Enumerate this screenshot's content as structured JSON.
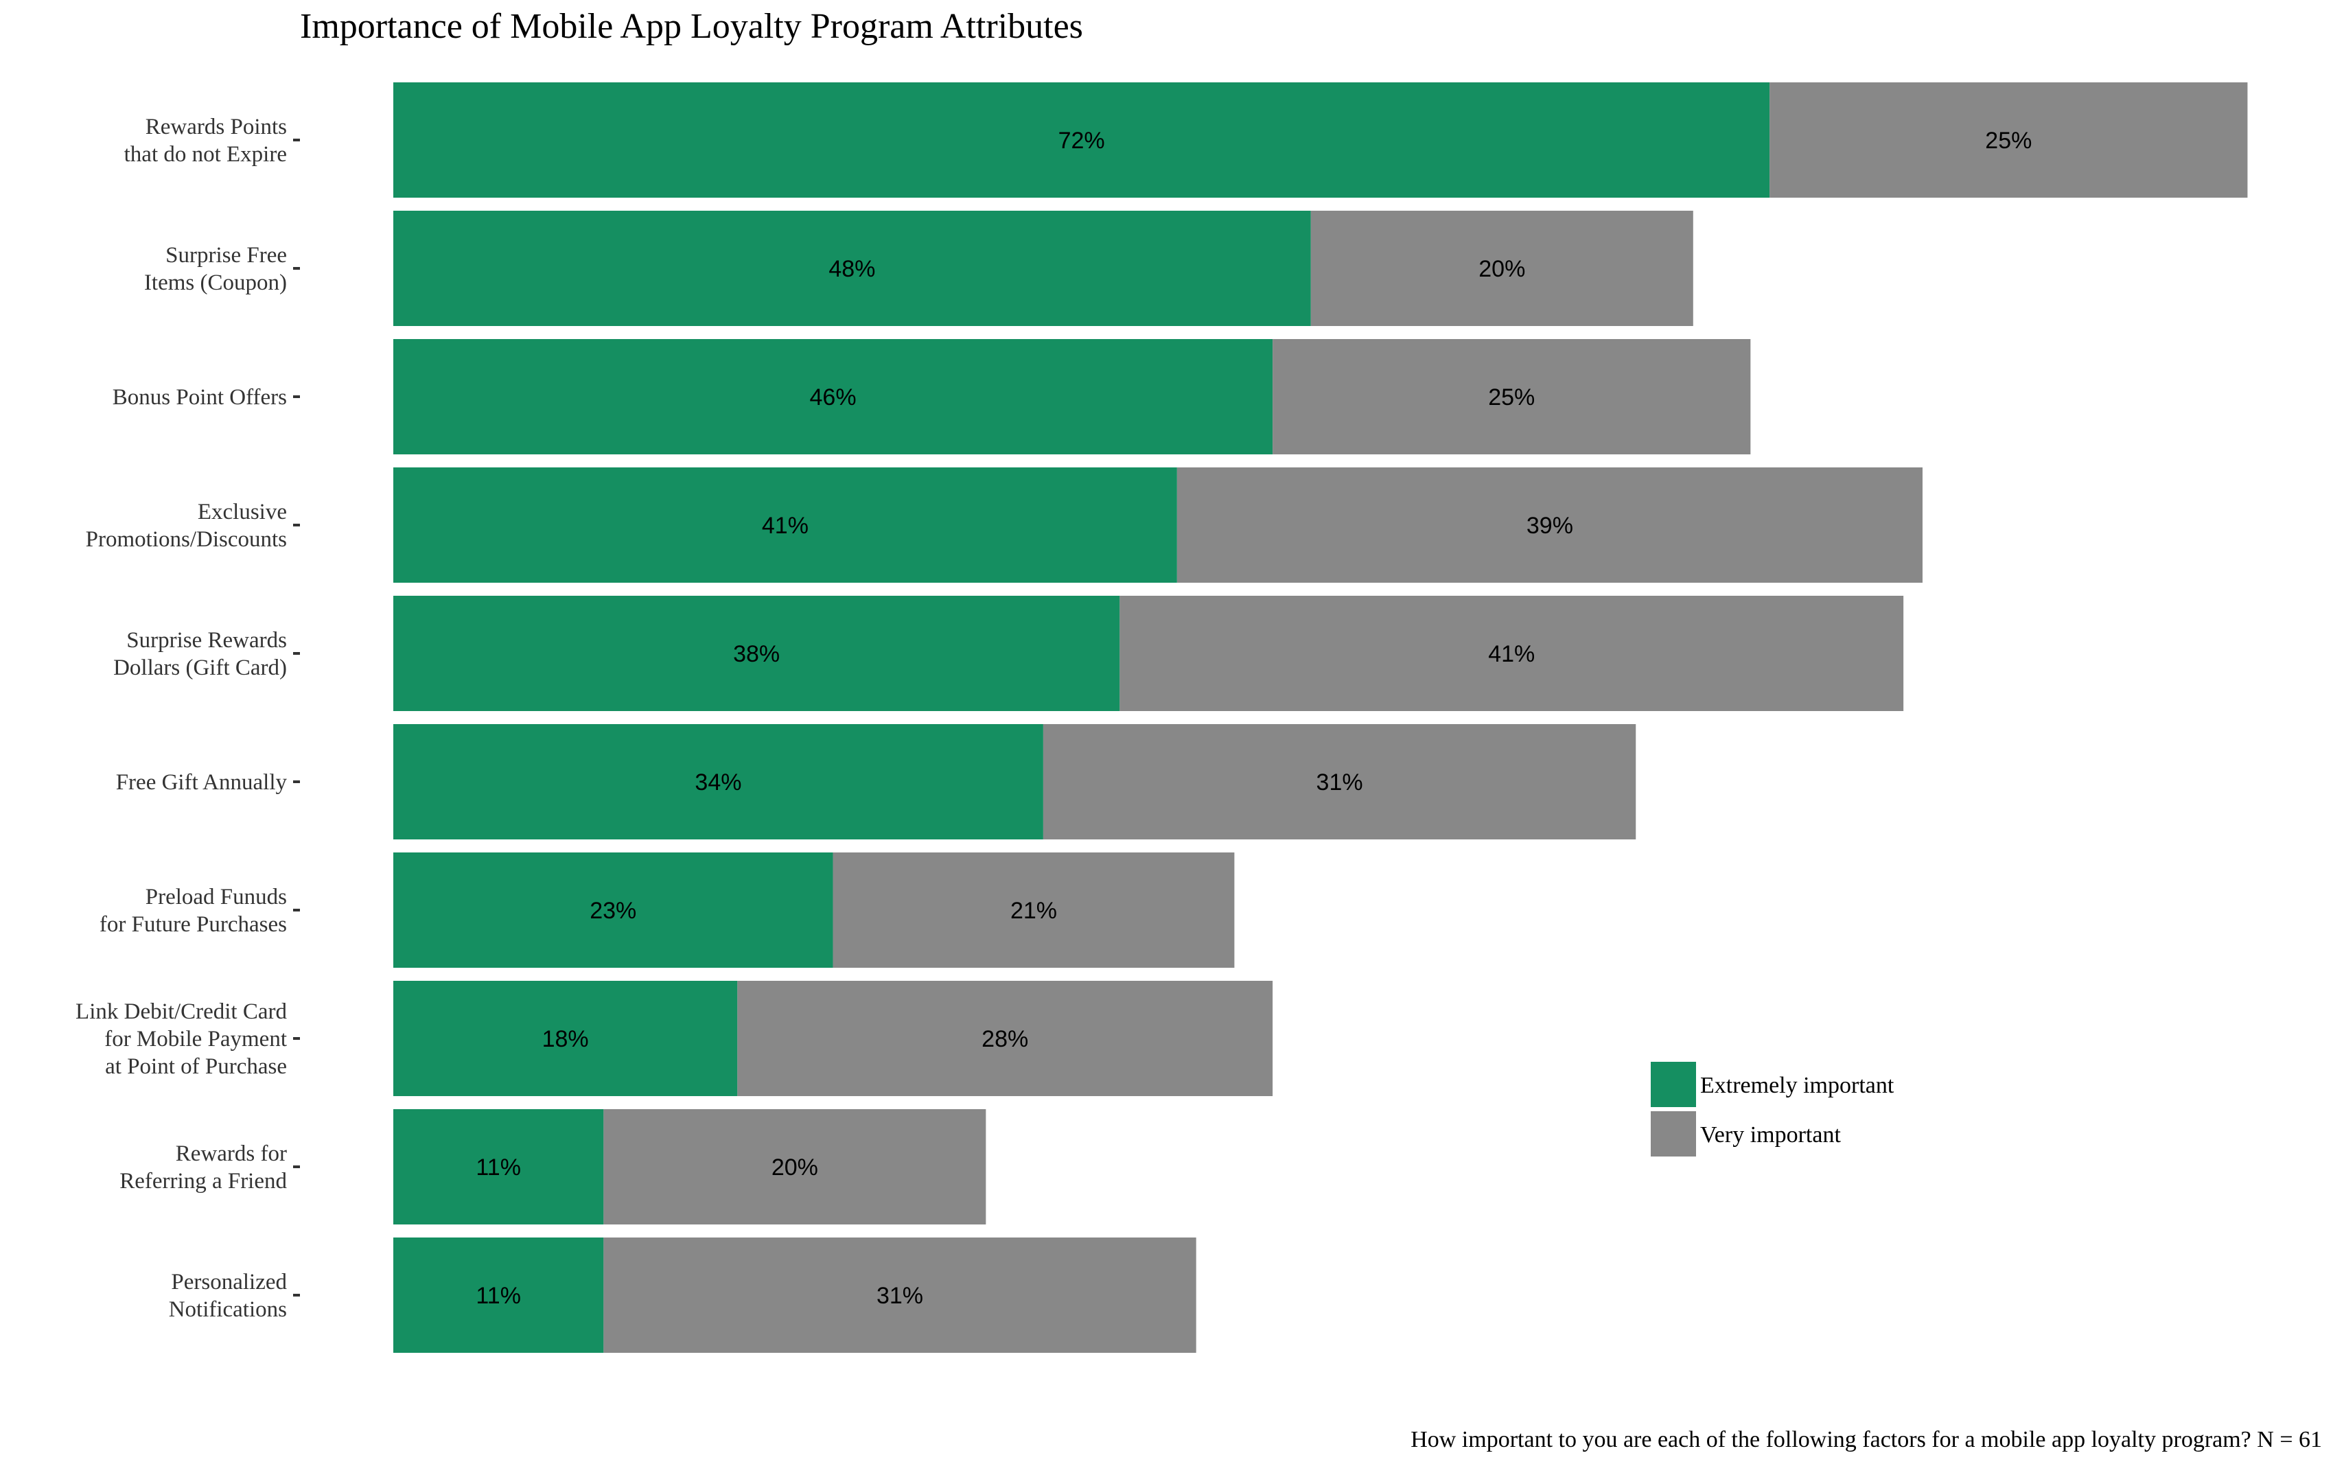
{
  "chart_data": {
    "type": "bar",
    "orientation": "horizontal",
    "stacked": true,
    "title": "Importance of Mobile App Loyalty Program Attributes",
    "caption": "How important to you are each of the following factors for a mobile app loyalty program? N =  61",
    "categories": [
      [
        "Rewards Points",
        "that do not Expire"
      ],
      [
        "Surprise Free",
        "Items (Coupon)"
      ],
      [
        "Bonus Point Offers"
      ],
      [
        "Exclusive",
        "Promotions/Discounts"
      ],
      [
        "Surprise Rewards",
        "Dollars (Gift Card)"
      ],
      [
        "Free Gift Annually"
      ],
      [
        "Preload Funuds",
        "for Future Purchases"
      ],
      [
        "Link Debit/Credit Card",
        "for Mobile Payment",
        "at Point of Purchase"
      ],
      [
        "Rewards for",
        "Referring a Friend"
      ],
      [
        "Personalized",
        "Notifications"
      ]
    ],
    "series": [
      {
        "name": "Extremely important",
        "color": "#158f61",
        "values": [
          72,
          48,
          46,
          41,
          38,
          34,
          23,
          18,
          11,
          11
        ],
        "labels": [
          "72%",
          "48%",
          "46%",
          "41%",
          "38%",
          "34%",
          "23%",
          "18%",
          "11%",
          "11%"
        ]
      },
      {
        "name": "Very important",
        "color": "#888888",
        "values": [
          25,
          20,
          25,
          39,
          41,
          31,
          21,
          28,
          20,
          31
        ],
        "labels": [
          "25%",
          "20%",
          "25%",
          "39%",
          "41%",
          "31%",
          "21%",
          "28%",
          "20%",
          "31%"
        ]
      }
    ],
    "grid": false,
    "legend_position": "right",
    "x_axis_shown": false
  }
}
